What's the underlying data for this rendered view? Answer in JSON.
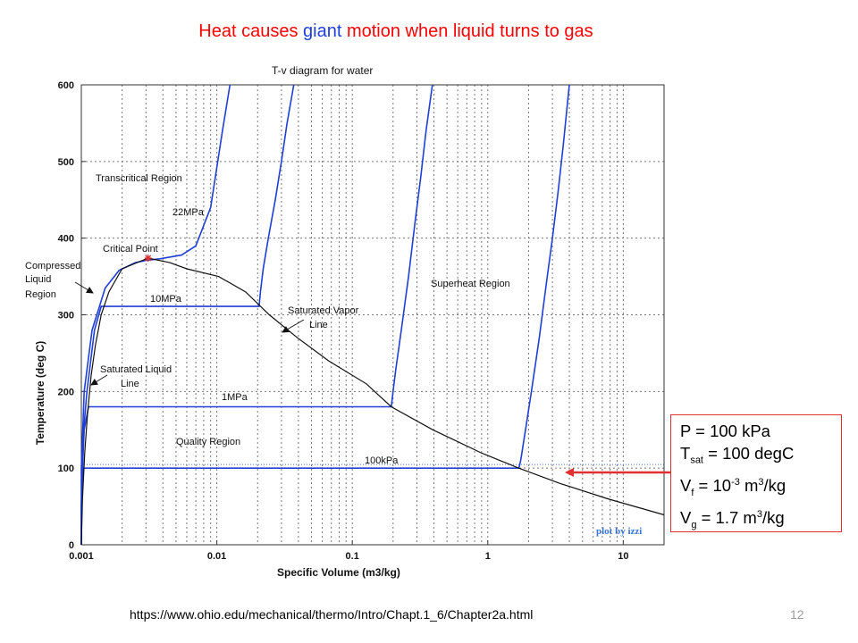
{
  "slide": {
    "title_prefix": "Heat causes",
    "title_highlight": "giant",
    "title_suffix": "motion when liquid turns to gas",
    "source_url": "https://www.ohio.edu/mechanical/thermo/Intro/Chapt.1_6/Chapter2a.html",
    "slide_number": "12"
  },
  "info_box": {
    "line1": "P = 100 kPa",
    "line2_main": "T",
    "line2_sub": "sat",
    "line2_rest": " = 100 degC",
    "line3_main": "V",
    "line3_sub": "f",
    "line3_mid": " = 10",
    "line3_sup": "-3",
    "line3_unit": " m",
    "line3_unit_sup": "3",
    "line3_end": "/kg",
    "line4_main": "V",
    "line4_sub": "g",
    "line4_mid": " = 1.7 m",
    "line4_sup": "3",
    "line4_end": "/kg",
    "arrow_color": "#e03030"
  },
  "chart_data": {
    "type": "line",
    "title": "T-v diagram for water",
    "xlabel": "Specific Volume (m3/kg)",
    "ylabel": "Temperature (deg C)",
    "xscale": "log",
    "xlim": [
      0.001,
      20
    ],
    "ylim": [
      0,
      600
    ],
    "xticks": [
      0.001,
      0.01,
      0.1,
      1,
      10
    ],
    "xtick_labels": [
      "0.001",
      "0.01",
      "0.1",
      "1",
      "10"
    ],
    "yticks": [
      0,
      100,
      200,
      300,
      400,
      500,
      600
    ],
    "ytick_labels": [
      "0",
      "100",
      "200",
      "300",
      "400",
      "500",
      "600"
    ],
    "grid": true,
    "saturation_color": "#111111",
    "isobar_color": "#1f3fd6",
    "critical_point_color": "#e03030",
    "saturation_dome": {
      "name": "Saturation curve",
      "x": [
        0.001,
        0.00102,
        0.00106,
        0.00111,
        0.00118,
        0.00127,
        0.0014,
        0.0016,
        0.002,
        0.00311,
        0.0045,
        0.006,
        0.0103,
        0.0163,
        0.0244,
        0.0394,
        0.0668,
        0.127,
        0.194,
        0.393,
        0.891,
        1.694,
        3.407,
        7.67,
        20
      ],
      "y": [
        0,
        60,
        120,
        170,
        220,
        260,
        300,
        330,
        360,
        374,
        368,
        360,
        350,
        330,
        300,
        270,
        240,
        210,
        180,
        150,
        120,
        100,
        80,
        60,
        39
      ]
    },
    "isobars": [
      {
        "name": "22MPa",
        "x": [
          0.00098,
          0.001,
          0.00105,
          0.0012,
          0.0015,
          0.0019,
          0.0025,
          0.003,
          0.0038,
          0.0055,
          0.007,
          0.009,
          0.011,
          0.0125
        ],
        "y": [
          0,
          100,
          200,
          280,
          335,
          358,
          368,
          371,
          373,
          378,
          390,
          440,
          540,
          600
        ]
      },
      {
        "name": "10MPa",
        "x": [
          0.00099,
          0.001,
          0.00104,
          0.0011,
          0.00125,
          0.0014,
          0.0018,
          0.0205,
          0.021,
          0.022,
          0.024,
          0.027,
          0.03,
          0.033,
          0.037
        ],
        "y": [
          0,
          50,
          150,
          200,
          280,
          311,
          311,
          311,
          330,
          360,
          400,
          450,
          500,
          550,
          600
        ]
      },
      {
        "name": "1MPa",
        "x": [
          0.001,
          0.001,
          0.00102,
          0.00105,
          0.00113,
          0.194,
          0.2,
          0.21,
          0.23,
          0.26,
          0.29,
          0.32,
          0.35,
          0.39
        ],
        "y": [
          0,
          50,
          100,
          150,
          180,
          180,
          200,
          230,
          280,
          350,
          420,
          480,
          540,
          600
        ]
      },
      {
        "name": "100kPa",
        "x": [
          0.001,
          0.001,
          0.00104,
          1.694,
          1.75,
          1.9,
          2.1,
          2.4,
          2.7,
          3.0,
          3.3,
          3.6,
          4.0
        ],
        "y": [
          0,
          50,
          100,
          100,
          110,
          150,
          200,
          270,
          340,
          400,
          460,
          520,
          600
        ]
      }
    ],
    "critical_point": {
      "x": 0.00311,
      "y": 374
    },
    "annotations": {
      "transcritical": "Transcritical Region",
      "isobar_22": "22MPa",
      "critical": "Critical Point",
      "compressed_1": "Compressed",
      "compressed_2": "Liquid",
      "compressed_3": "Region",
      "isobar_10": "10MPa",
      "sat_vapor_1": "Saturated Vapor",
      "sat_vapor_2": "Line",
      "superheat": "Superheat Region",
      "sat_liquid_1": "Saturated Liquid",
      "sat_liquid_2": "Line",
      "isobar_1": "1MPa",
      "quality": "Quality Region",
      "isobar_100k": "100kPa",
      "credit": "plot by izzi"
    }
  }
}
